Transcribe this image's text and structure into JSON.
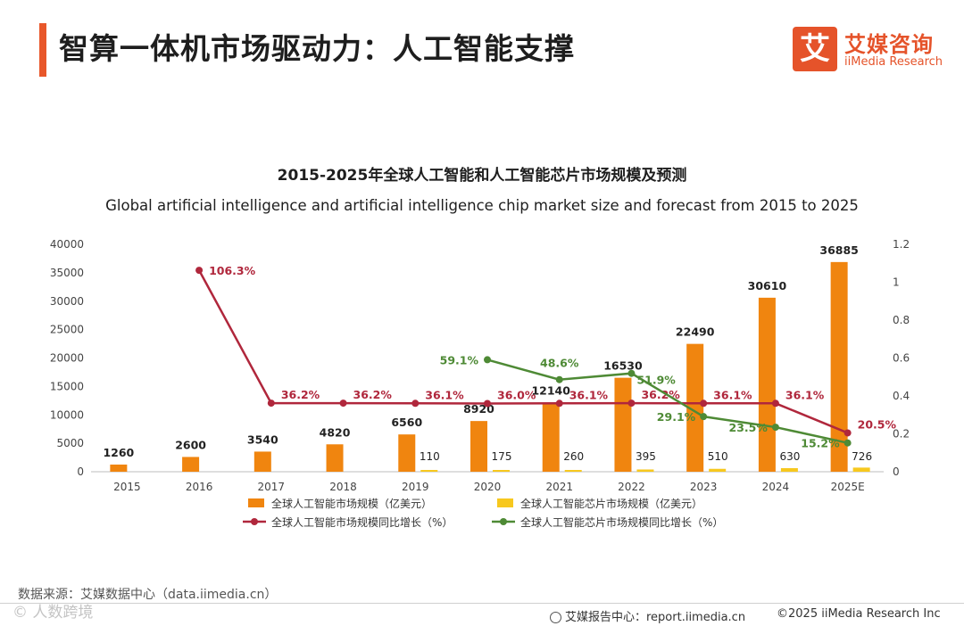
{
  "page": {
    "title": "智算一体机市场驱动力：人工智能支撑",
    "logo_mark": "艾",
    "logo_cn": "艾媒咨询",
    "logo_en": "iiMedia Research",
    "source": "数据来源：艾媒数据中心（data.iimedia.cn）",
    "watermark": "© 人数跨境",
    "footer_report": "艾媒报告中心：report.iimedia.cn",
    "footer_copyright": "©2025  iiMedia Research  Inc"
  },
  "colors": {
    "accent": "#e8572a",
    "bar_ai": "#f0850f",
    "bar_chip": "#f7c81e",
    "line_ai": "#b0273c",
    "line_chip": "#4e8a35"
  },
  "chart_data": {
    "type": "bar",
    "title": "2015-2025年全球人工智能和人工智能芯片市场规模及预测",
    "subtitle": "Global artificial intelligence and artificial intelligence chip market size and forecast from 2015 to 2025",
    "categories": [
      "2015",
      "2016",
      "2017",
      "2018",
      "2019",
      "2020",
      "2021",
      "2022",
      "2023",
      "2024",
      "2025E"
    ],
    "y_left": {
      "min": 0,
      "max": 40000,
      "ticks": [
        "0",
        "5000",
        "10000",
        "15000",
        "20000",
        "25000",
        "30000",
        "35000",
        "40000"
      ]
    },
    "y_right": {
      "min": 0,
      "max": 1.2,
      "ticks": [
        "0",
        "0.2",
        "0.4",
        "0.6",
        "0.8",
        "1",
        "1.2"
      ]
    },
    "series": [
      {
        "name": "全球人工智能市场规模（亿美元）",
        "kind": "bar",
        "axis": "left",
        "values": [
          1260,
          2600,
          3540,
          4820,
          6560,
          8920,
          12140,
          16530,
          22490,
          30610,
          36885
        ],
        "labels": [
          "1260",
          "2600",
          "3540",
          "4820",
          "6560",
          "8920",
          "12140",
          "16530",
          "22490",
          "30610",
          "36885"
        ]
      },
      {
        "name": "全球人工智能芯片市场规模（亿美元）",
        "kind": "bar",
        "axis": "left",
        "values": [
          null,
          null,
          null,
          null,
          110,
          175,
          260,
          395,
          510,
          630,
          726
        ],
        "labels": [
          "",
          "",
          "",
          "",
          "110",
          "175",
          "260",
          "395",
          "510",
          "630",
          "726"
        ]
      },
      {
        "name": "全球人工智能市场规模同比增长（%）",
        "kind": "line",
        "axis": "right",
        "values": [
          null,
          1.063,
          0.362,
          0.362,
          0.361,
          0.36,
          0.361,
          0.362,
          0.361,
          0.361,
          0.205
        ],
        "labels": [
          "",
          "106.3%",
          "36.2%",
          "36.2%",
          "36.1%",
          "36.0%",
          "36.1%",
          "36.2%",
          "36.1%",
          "36.1%",
          "20.5%"
        ]
      },
      {
        "name": "全球人工智能芯片市场规模同比增长（%）",
        "kind": "line",
        "axis": "right",
        "values": [
          null,
          null,
          null,
          null,
          null,
          0.591,
          0.486,
          0.519,
          0.291,
          0.235,
          0.152
        ],
        "labels": [
          "",
          "",
          "",
          "",
          "",
          "59.1%",
          "48.6%",
          "51.9%",
          "29.1%",
          "23.5%",
          "15.2%"
        ]
      }
    ]
  }
}
